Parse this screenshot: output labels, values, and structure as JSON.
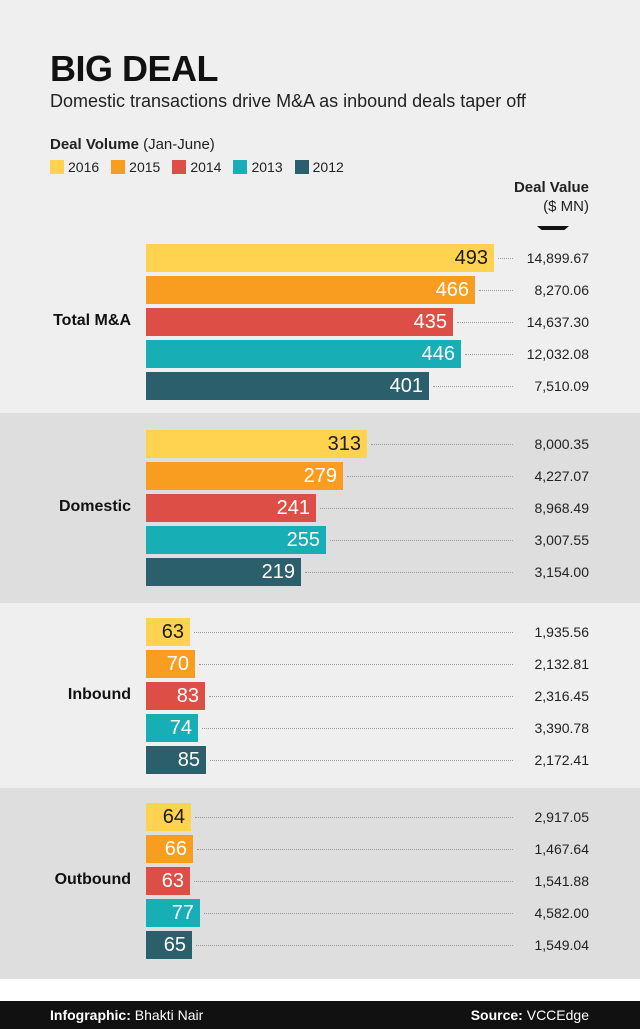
{
  "title": "BIG DEAL",
  "subtitle": "Domestic transactions drive M&A as inbound deals taper off",
  "volume_label": {
    "bold": "Deal Volume",
    "rest": " (Jan-June)"
  },
  "deal_value_header": {
    "line1": "Deal Value",
    "line2": "($ MN)"
  },
  "legend": [
    {
      "label": "2016",
      "color": "#ffd24f"
    },
    {
      "label": "2015",
      "color": "#f99d20"
    },
    {
      "label": "2014",
      "color": "#dd4f46"
    },
    {
      "label": "2013",
      "color": "#17aeb6"
    },
    {
      "label": "2012",
      "color": "#2a5f6b"
    }
  ],
  "footer": {
    "credit_label": "Infographic:",
    "credit_name": " Bhakti Nair",
    "source_label": "Source:",
    "source_name": " VCCEdge"
  },
  "chart_data": {
    "type": "bar",
    "orientation": "horizontal",
    "title": "BIG DEAL",
    "subtitle": "Domestic transactions drive M&A as inbound deals taper off",
    "series_names": [
      "2016",
      "2015",
      "2014",
      "2013",
      "2012"
    ],
    "series_colors": [
      "#ffd24f",
      "#f99d20",
      "#dd4f46",
      "#17aeb6",
      "#2a5f6b"
    ],
    "groups": [
      {
        "category": "Total M&A",
        "volumes": [
          493,
          466,
          435,
          446,
          401
        ],
        "deal_values": [
          "14,899.67",
          "8,270.06",
          "14,637.30",
          "12,032.08",
          "7,510.09"
        ]
      },
      {
        "category": "Domestic",
        "volumes": [
          313,
          279,
          241,
          255,
          219
        ],
        "deal_values": [
          "8,000.35",
          "4,227.07",
          "8,968.49",
          "3,007.55",
          "3,154.00"
        ]
      },
      {
        "category": "Inbound",
        "volumes": [
          63,
          70,
          83,
          74,
          85
        ],
        "deal_values": [
          "1,935.56",
          "2,132.81",
          "2,316.45",
          "3,390.78",
          "2,172.41"
        ]
      },
      {
        "category": "Outbound",
        "volumes": [
          64,
          66,
          63,
          77,
          65
        ],
        "deal_values": [
          "2,917.05",
          "1,467.64",
          "1,541.88",
          "4,582.00",
          "1,549.04"
        ]
      }
    ],
    "xlabel": "Deal Volume (Jan-June)",
    "secondary_label": "Deal Value ($ MN)",
    "legend_position": "top-left"
  }
}
